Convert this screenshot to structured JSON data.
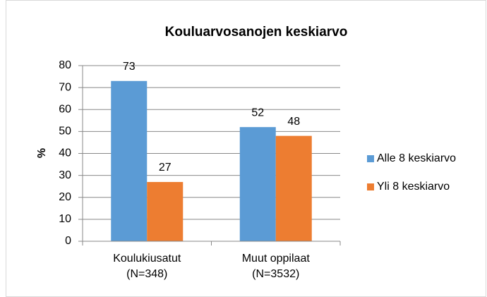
{
  "chart_data": {
    "type": "bar",
    "title": "Kouluarvosanojen keskiarvo",
    "y_label": "%",
    "categories": [
      "Koulukiusatut\n(N=348)",
      "Muut oppilaat\n(N=3532)"
    ],
    "series": [
      {
        "name": "Alle 8 keskiarvo",
        "color": "#5b9bd5",
        "values": [
          73,
          52
        ]
      },
      {
        "name": "Yli 8 keskiarvo",
        "color": "#ed7d31",
        "values": [
          27,
          48
        ]
      }
    ],
    "ylim": [
      0,
      80
    ],
    "yticks": [
      0,
      10,
      20,
      30,
      40,
      50,
      60,
      70,
      80
    ],
    "grid": true,
    "legend": "right"
  }
}
